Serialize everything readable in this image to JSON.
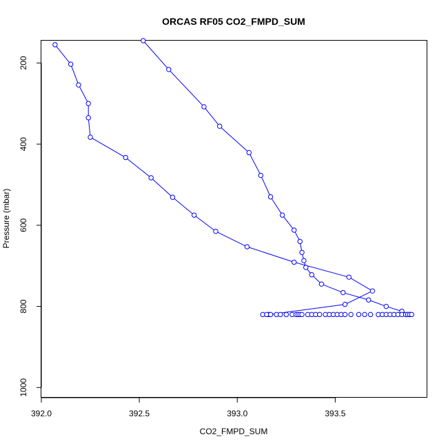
{
  "chart_data": {
    "type": "scatter",
    "title": "ORCAS RF05 CO2_FMPD_SUM",
    "xlabel": "CO2_FMPD_SUM",
    "ylabel": "Pressure (mbar)",
    "xlim": [
      392.0,
      393.97
    ],
    "ylim": [
      1025,
      145
    ],
    "y_reversed": true,
    "grid": false,
    "x_ticks": [
      "392.0",
      "392.5",
      "393.0",
      "393.5"
    ],
    "y_ticks": [
      "200",
      "400",
      "600",
      "800",
      "1000"
    ],
    "point_color": "#0000ff",
    "line_color": "#0000ff",
    "series": [
      {
        "connected": true,
        "points": [
          [
            392.07,
            155
          ],
          [
            392.15,
            203
          ],
          [
            392.19,
            254
          ],
          [
            392.24,
            300
          ],
          [
            392.24,
            335
          ],
          [
            392.25,
            383
          ],
          [
            392.43,
            433
          ],
          [
            392.56,
            483
          ],
          [
            392.67,
            531
          ],
          [
            392.78,
            575
          ],
          [
            392.89,
            615
          ],
          [
            393.05,
            653
          ],
          [
            393.29,
            691
          ],
          [
            393.57,
            728
          ],
          [
            393.69,
            762
          ],
          [
            393.55,
            795
          ],
          [
            393.16,
            820
          ]
        ]
      },
      {
        "connected": true,
        "points": [
          [
            392.52,
            145
          ],
          [
            392.65,
            216
          ],
          [
            392.83,
            308
          ],
          [
            392.91,
            356
          ],
          [
            393.06,
            421
          ],
          [
            393.12,
            477
          ],
          [
            393.17,
            530
          ],
          [
            393.23,
            575
          ],
          [
            393.29,
            612
          ],
          [
            393.32,
            640
          ],
          [
            393.33,
            667
          ],
          [
            393.34,
            687
          ],
          [
            393.35,
            704
          ],
          [
            393.38,
            722
          ],
          [
            393.43,
            745
          ],
          [
            393.54,
            766
          ],
          [
            393.67,
            784
          ],
          [
            393.76,
            800
          ],
          [
            393.84,
            812
          ],
          [
            393.88,
            820
          ]
        ]
      },
      {
        "connected": false,
        "points": [
          [
            393.13,
            820
          ],
          [
            393.15,
            820
          ],
          [
            393.17,
            820
          ],
          [
            393.2,
            820
          ],
          [
            393.22,
            820
          ],
          [
            393.25,
            820
          ],
          [
            393.28,
            820
          ],
          [
            393.3,
            820
          ],
          [
            393.31,
            820
          ],
          [
            393.32,
            820
          ],
          [
            393.33,
            820
          ],
          [
            393.36,
            820
          ],
          [
            393.38,
            820
          ],
          [
            393.4,
            820
          ],
          [
            393.42,
            820
          ],
          [
            393.45,
            820
          ],
          [
            393.47,
            820
          ],
          [
            393.49,
            820
          ],
          [
            393.51,
            820
          ],
          [
            393.53,
            820
          ],
          [
            393.55,
            820
          ],
          [
            393.58,
            820
          ],
          [
            393.62,
            820
          ],
          [
            393.65,
            820
          ],
          [
            393.68,
            820
          ],
          [
            393.72,
            820
          ],
          [
            393.74,
            820
          ],
          [
            393.76,
            820
          ],
          [
            393.78,
            820
          ],
          [
            393.8,
            820
          ],
          [
            393.82,
            820
          ],
          [
            393.84,
            820
          ],
          [
            393.86,
            820
          ],
          [
            393.87,
            820
          ],
          [
            393.88,
            820
          ],
          [
            393.89,
            820
          ]
        ]
      }
    ]
  }
}
